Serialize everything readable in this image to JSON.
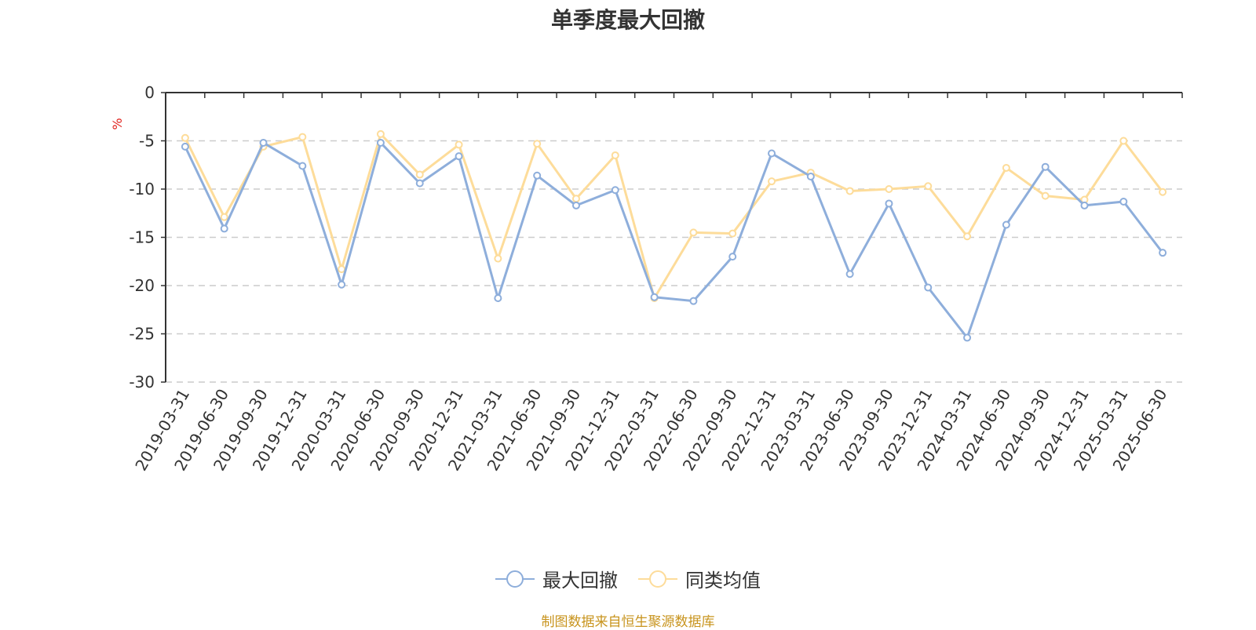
{
  "chart_data": {
    "type": "line",
    "title": "单季度最大回撤",
    "ylabel": "%",
    "ylim": [
      -30,
      0
    ],
    "yticks": [
      0,
      -5,
      -10,
      -15,
      -20,
      -25,
      -30
    ],
    "categories": [
      "2019-03-31",
      "2019-06-30",
      "2019-09-30",
      "2019-12-31",
      "2020-03-31",
      "2020-06-30",
      "2020-09-30",
      "2020-12-31",
      "2021-03-31",
      "2021-06-30",
      "2021-09-30",
      "2021-12-31",
      "2022-03-31",
      "2022-06-30",
      "2022-09-30",
      "2022-12-31",
      "2023-03-31",
      "2023-06-30",
      "2023-09-30",
      "2023-12-31",
      "2024-03-31",
      "2024-06-30",
      "2024-09-30",
      "2024-12-31",
      "2025-03-31",
      "2025-06-30"
    ],
    "series": [
      {
        "name": "最大回撤",
        "color": "#8eaedb",
        "values": [
          -5.6,
          -14.1,
          -5.2,
          -7.6,
          -19.9,
          -5.2,
          -9.4,
          -6.6,
          -21.3,
          -8.6,
          -11.7,
          -10.1,
          -21.2,
          -21.6,
          -17.0,
          -6.3,
          -8.7,
          -18.8,
          -11.5,
          -20.2,
          -25.4,
          -13.7,
          -7.7,
          -11.7,
          -11.3,
          -16.6
        ]
      },
      {
        "name": "同类均值",
        "color": "#fddc9a",
        "values": [
          -4.7,
          -12.9,
          -5.6,
          -4.6,
          -18.3,
          -4.3,
          -8.5,
          -5.4,
          -17.2,
          -5.3,
          -11.0,
          -6.5,
          -21.3,
          -14.5,
          -14.6,
          -9.2,
          -8.3,
          -10.2,
          -10.0,
          -9.7,
          -14.9,
          -7.8,
          -10.7,
          -11.1,
          -5.0,
          -10.3
        ]
      }
    ],
    "grid": true,
    "legend_position": "bottom"
  },
  "footer": {
    "source": "制图数据来自恒生聚源数据库"
  }
}
